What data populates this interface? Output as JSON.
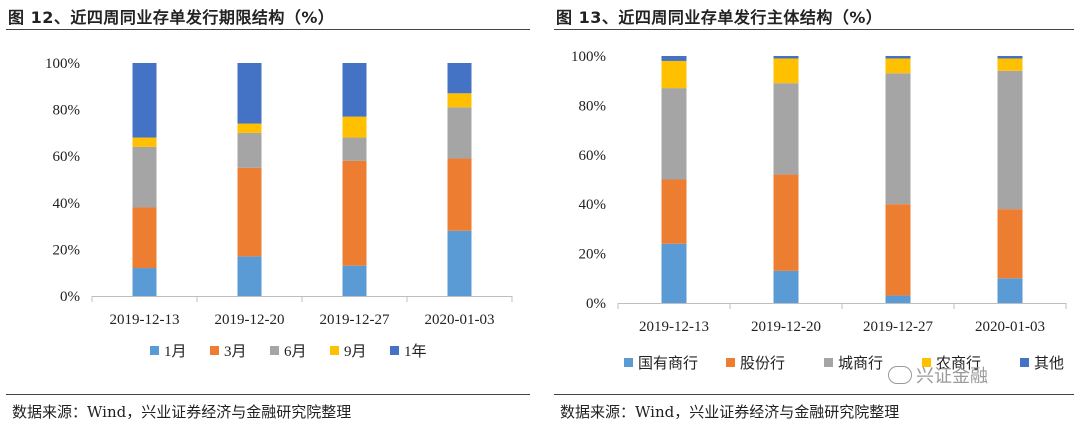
{
  "charts": [
    {
      "title": "图 12、近四周同业存单发行期限结构（%）",
      "source": "数据来源：Wind，兴业证券经济与金融研究院整理",
      "chart_data": {
        "type": "bar",
        "stacked": true,
        "categories": [
          "2019-12-13",
          "2019-12-20",
          "2019-12-27",
          "2020-01-03"
        ],
        "ylim": [
          0,
          100
        ],
        "yticks": [
          0,
          20,
          40,
          60,
          80,
          100
        ],
        "ytick_labels": [
          "0%",
          "20%",
          "40%",
          "60%",
          "80%",
          "100%"
        ],
        "grid": false,
        "legend_position": "bottom",
        "series": [
          {
            "name": "1月",
            "color": "#5b9bd5",
            "values": [
              12,
              17,
              13,
              28
            ]
          },
          {
            "name": "3月",
            "color": "#ed7d31",
            "values": [
              26,
              38,
              45,
              31
            ]
          },
          {
            "name": "6月",
            "color": "#a5a5a5",
            "values": [
              26,
              15,
              10,
              22
            ]
          },
          {
            "name": "9月",
            "color": "#ffc000",
            "values": [
              4,
              4,
              9,
              6
            ]
          },
          {
            "name": "1年",
            "color": "#4472c4",
            "values": [
              32,
              26,
              23,
              13
            ]
          }
        ]
      }
    },
    {
      "title": "图 13、近四周同业存单发行主体结构（%）",
      "source": "数据来源：Wind，兴业证券经济与金融研究院整理",
      "watermark": "兴证金融",
      "chart_data": {
        "type": "bar",
        "stacked": true,
        "categories": [
          "2019-12-13",
          "2019-12-20",
          "2019-12-27",
          "2020-01-03"
        ],
        "ylim": [
          0,
          100
        ],
        "yticks": [
          0,
          20,
          40,
          60,
          80,
          100
        ],
        "ytick_labels": [
          "0%",
          "20%",
          "40%",
          "60%",
          "80%",
          "100%"
        ],
        "grid": false,
        "legend_position": "bottom",
        "series": [
          {
            "name": "国有商行",
            "color": "#5b9bd5",
            "values": [
              24,
              13,
              3,
              10
            ]
          },
          {
            "name": "股份行",
            "color": "#ed7d31",
            "values": [
              26,
              39,
              37,
              28
            ]
          },
          {
            "name": "城商行",
            "color": "#a5a5a5",
            "values": [
              37,
              37,
              53,
              56
            ]
          },
          {
            "name": "农商行",
            "color": "#ffc000",
            "values": [
              11,
              10,
              6,
              5
            ]
          },
          {
            "name": "其他",
            "color": "#4472c4",
            "values": [
              2,
              1,
              1,
              1
            ]
          }
        ]
      }
    }
  ]
}
